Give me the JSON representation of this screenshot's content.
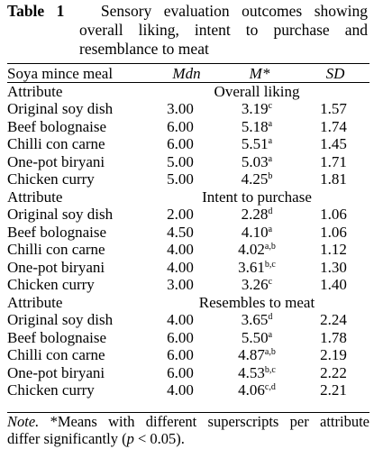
{
  "caption": {
    "label": "Table 1",
    "line1": "Sensory evaluation outcomes showing",
    "line2": "overall liking, intent to purchase and",
    "line3": "resemblance to meat"
  },
  "columns": {
    "name": "Soya mince meal",
    "mdn": "Mdn",
    "m": "M*",
    "sd": "SD"
  },
  "sections": [
    {
      "attribute_label": "Attribute",
      "title": "Overall liking",
      "rows": [
        {
          "name": "Original soy dish",
          "mdn": "3.00",
          "m": "3.19",
          "sup": "c",
          "sd": "1.57"
        },
        {
          "name": "Beef bolognaise",
          "mdn": "6.00",
          "m": "5.18",
          "sup": "a",
          "sd": "1.74"
        },
        {
          "name": "Chilli con carne",
          "mdn": "6.00",
          "m": "5.51",
          "sup": "a",
          "sd": "1.45"
        },
        {
          "name": "One-pot biryani",
          "mdn": "5.00",
          "m": "5.03",
          "sup": "a",
          "sd": "1.71"
        },
        {
          "name": "Chicken curry",
          "mdn": "5.00",
          "m": "4.25",
          "sup": "b",
          "sd": "1.81"
        }
      ]
    },
    {
      "attribute_label": "Attribute",
      "title": "Intent to purchase",
      "rows": [
        {
          "name": "Original soy dish",
          "mdn": "2.00",
          "m": "2.28",
          "sup": "d",
          "sd": "1.06"
        },
        {
          "name": "Beef bolognaise",
          "mdn": "4.50",
          "m": "4.10",
          "sup": "a",
          "sd": "1.06"
        },
        {
          "name": "Chilli con carne",
          "mdn": "4.00",
          "m": "4.02",
          "sup": "a,b",
          "sd": "1.12"
        },
        {
          "name": "One-pot biryani",
          "mdn": "4.00",
          "m": "3.61",
          "sup": "b,c",
          "sd": "1.30"
        },
        {
          "name": "Chicken curry",
          "mdn": "3.00",
          "m": "3.26",
          "sup": "c",
          "sd": "1.40"
        }
      ]
    },
    {
      "attribute_label": "Attribute",
      "title": "Resembles to meat",
      "rows": [
        {
          "name": "Original soy dish",
          "mdn": "4.00",
          "m": "3.65",
          "sup": "d",
          "sd": "2.24"
        },
        {
          "name": "Beef bolognaise",
          "mdn": "6.00",
          "m": "5.50",
          "sup": "a",
          "sd": "1.78"
        },
        {
          "name": "Chilli con carne",
          "mdn": "6.00",
          "m": "4.87",
          "sup": "a,b",
          "sd": "2.19"
        },
        {
          "name": "One-pot biryani",
          "mdn": "6.00",
          "m": "4.53",
          "sup": "b,c",
          "sd": "2.22"
        },
        {
          "name": "Chicken curry",
          "mdn": "4.00",
          "m": "4.06",
          "sup": "c,d",
          "sd": "2.21"
        }
      ]
    }
  ],
  "note": {
    "label": "Note.",
    "line1": " *Means with different superscripts per attribute",
    "line2_pre": "differ significantly (",
    "p": "p",
    "line2_post": " < 0.05)."
  }
}
